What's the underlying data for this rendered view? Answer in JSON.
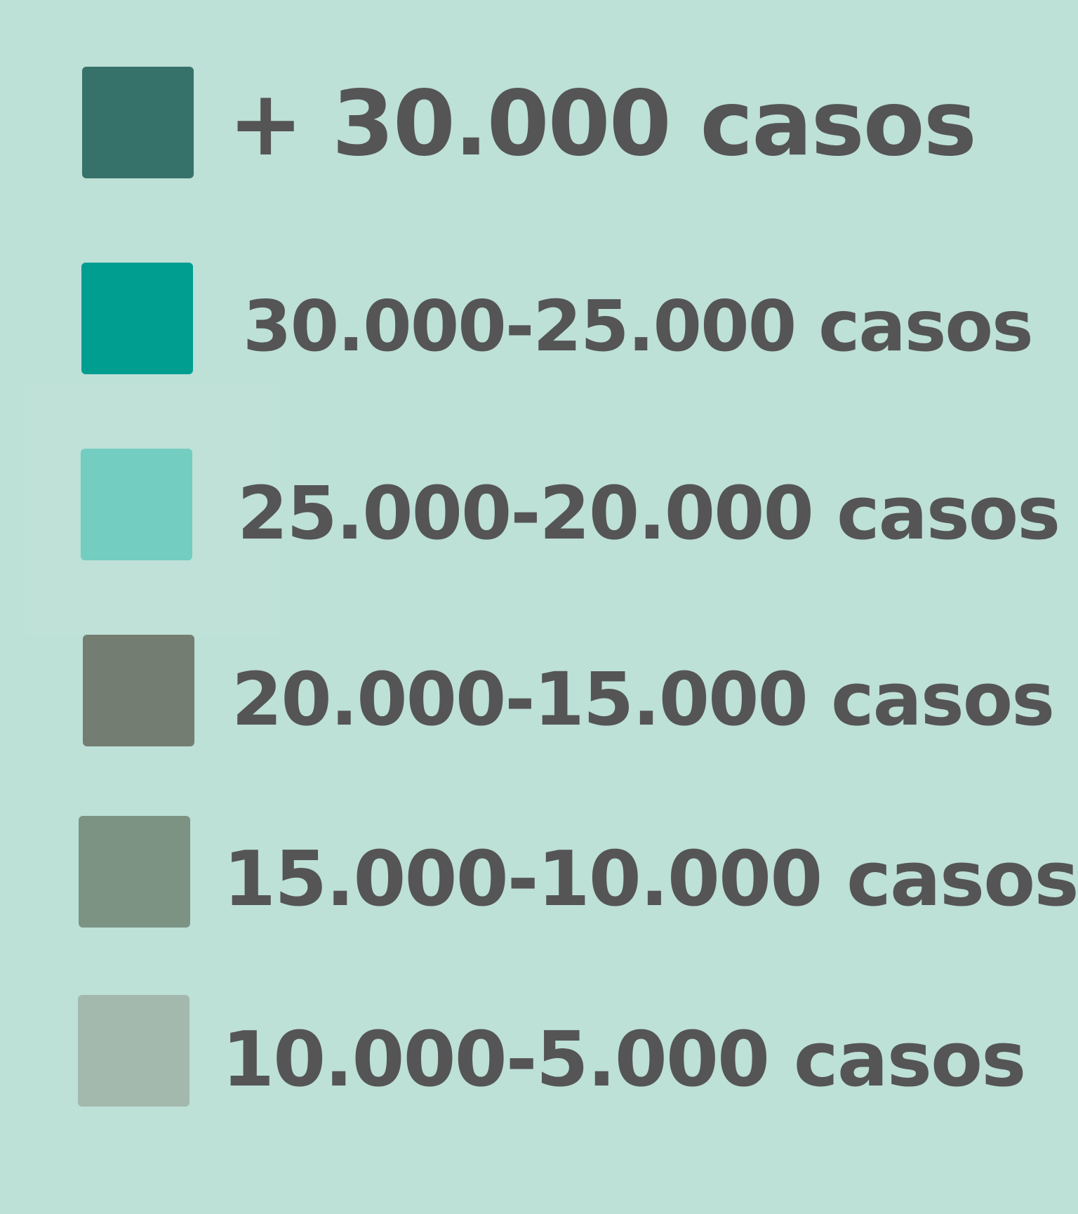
{
  "legend": {
    "items": [
      {
        "label": "+ 30.000 casos",
        "color": "#37726a"
      },
      {
        "label": "30.000-25.000 casos",
        "color": "#009e91"
      },
      {
        "label": "25.000-20.000 casos",
        "color": "#73cdc0"
      },
      {
        "label": "20.000-15.000 casos",
        "color": "#737d71"
      },
      {
        "label": "15.000-10.000 casos",
        "color": "#7c9384"
      },
      {
        "label": "10.000-5.000 casos",
        "color": "#a3b9ae"
      }
    ]
  }
}
